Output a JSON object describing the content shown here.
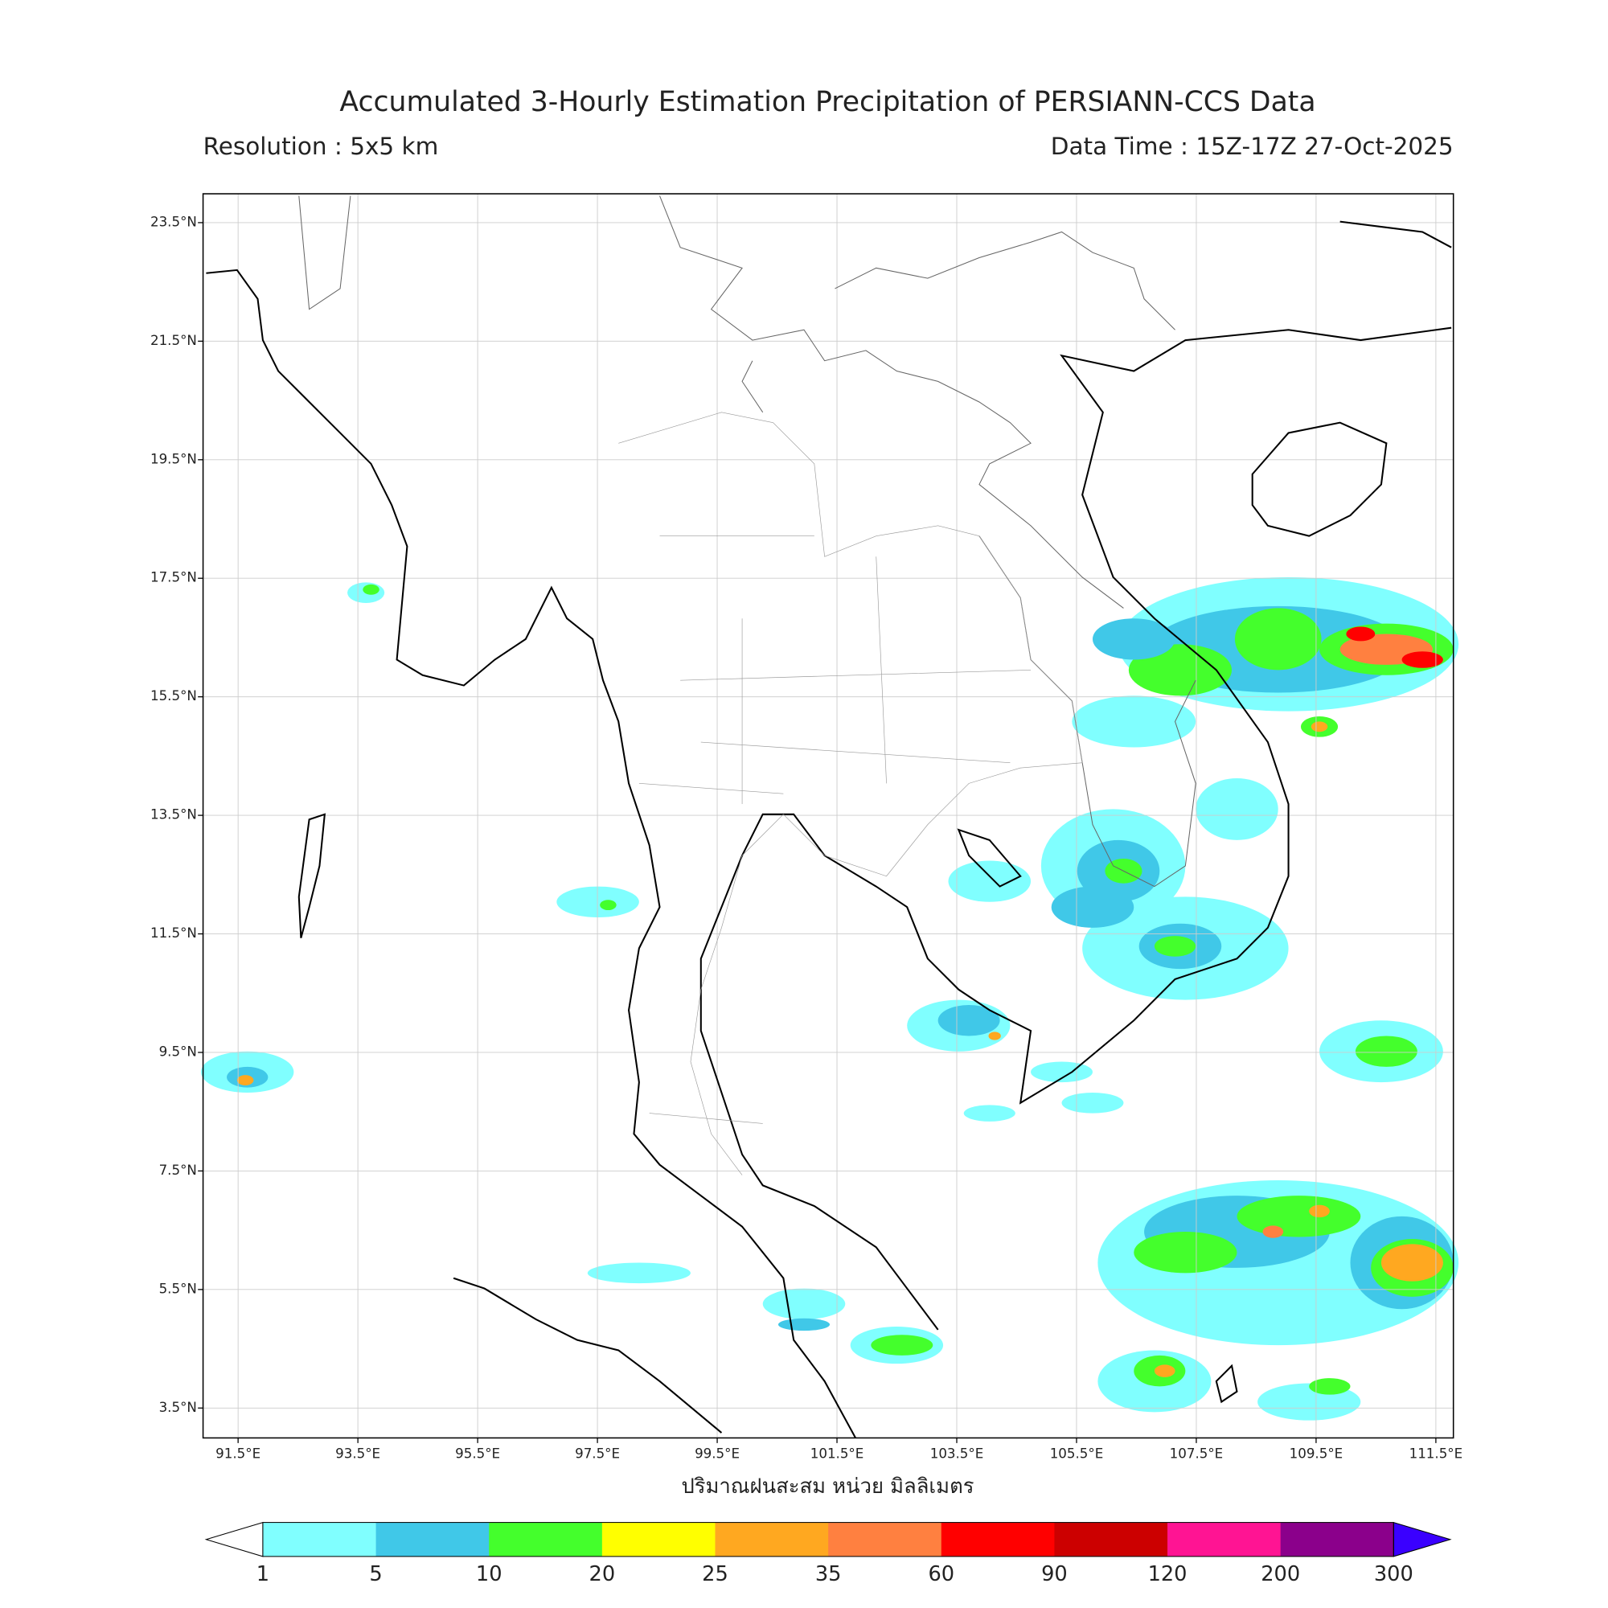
{
  "header": {
    "title": "Accumulated 3-Hourly Estimation Precipitation of PERSIANN-CCS Data",
    "resolution": "Resolution : 5x5 km",
    "data_time": "Data Time : 15Z-17Z 27-Oct-2025"
  },
  "map": {
    "lon_ticks": [
      "91.5°E",
      "93.5°E",
      "95.5°E",
      "97.5°E",
      "99.5°E",
      "101.5°E",
      "103.5°E",
      "105.5°E",
      "107.5°E",
      "109.5°E",
      "111.5°E"
    ],
    "lat_ticks": [
      "23.5°N",
      "21.5°N",
      "19.5°N",
      "17.5°N",
      "15.5°N",
      "13.5°N",
      "11.5°N",
      "9.5°N",
      "7.5°N",
      "5.5°N",
      "3.5°N"
    ],
    "x_label": "ปริมาณฝนสะสม หน่วย มิลลิเมตร"
  },
  "colorbar": {
    "levels": [
      "1",
      "5",
      "10",
      "20",
      "25",
      "35",
      "60",
      "90",
      "120",
      "200",
      "300"
    ],
    "colors": [
      "#80ffff",
      "#40c8e8",
      "#44ff2c",
      "#ffff00",
      "#ffa820",
      "#ff8040",
      "#ff0000",
      "#cc0000",
      "#ff1493",
      "#8b008b"
    ],
    "over_color": "#3a00ff"
  }
}
